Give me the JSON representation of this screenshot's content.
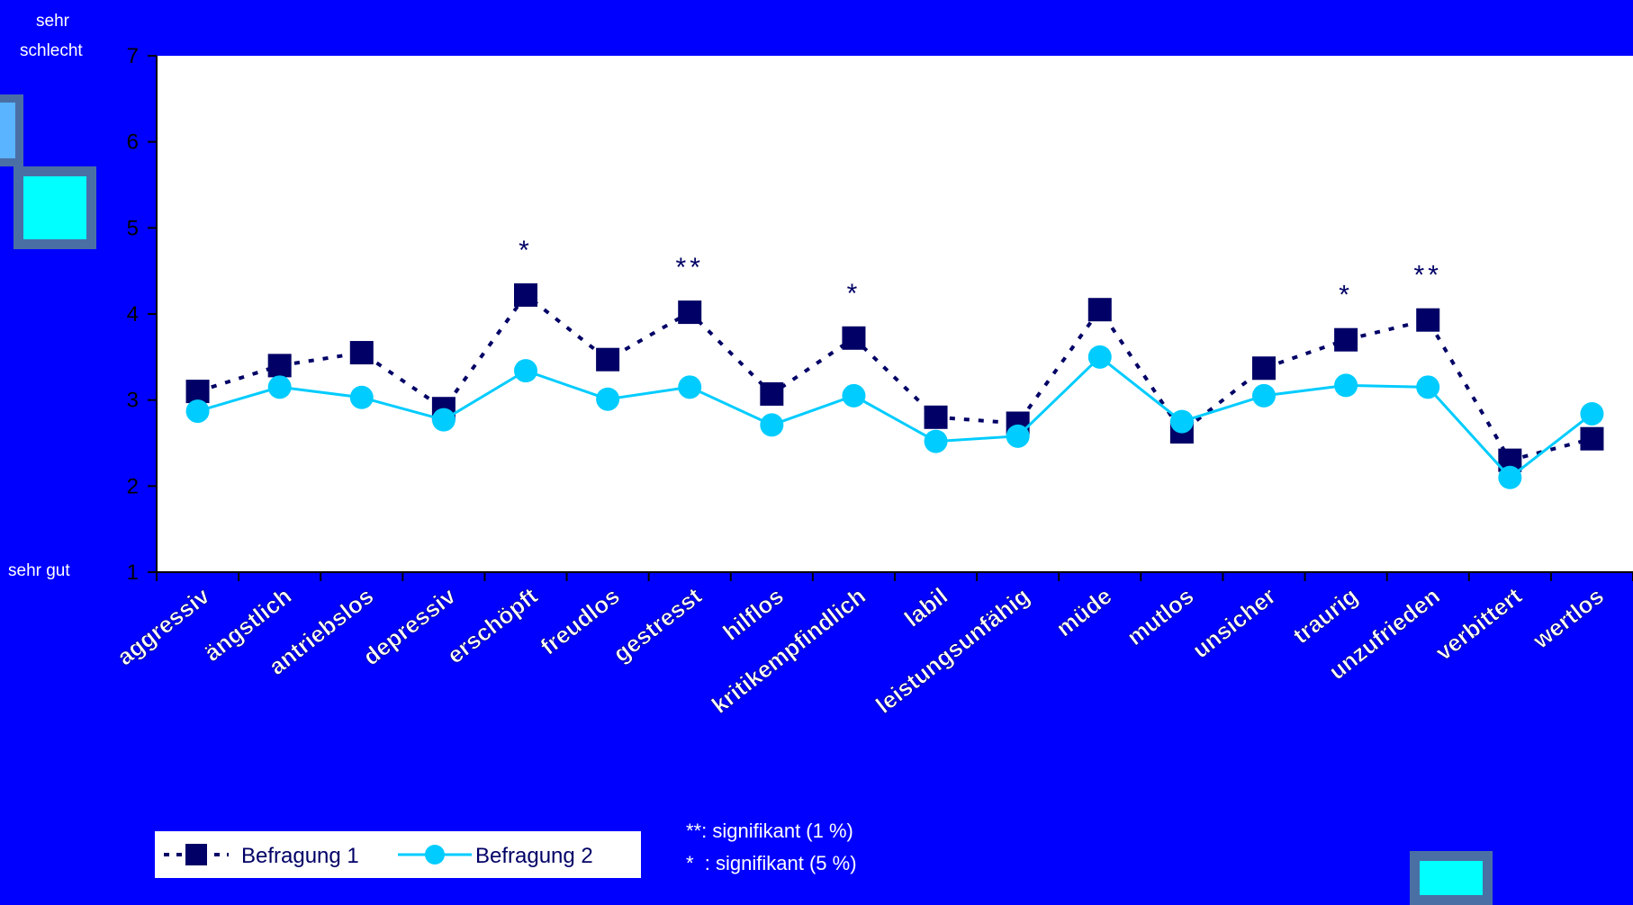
{
  "chart_data": {
    "type": "line",
    "title": "",
    "xlabel": "",
    "ylabel": "",
    "ylim": [
      1,
      7
    ],
    "yticks": [
      1,
      2,
      3,
      4,
      5,
      6,
      7
    ],
    "y_top_label": [
      "sehr",
      "schlecht"
    ],
    "y_bottom_label": "sehr  gut",
    "grid": false,
    "legend_position": "bottom-left",
    "categories": [
      "aggressiv",
      "ängstlich",
      "antriebslos",
      "depressiv",
      "erschöpft",
      "freudlos",
      "gestresst",
      "hilflos",
      "kritikempfindlich",
      "labil",
      "leistungsunfähig",
      "müde",
      "mutlos",
      "unsicher",
      "traurig",
      "unzufrieden",
      "verbittert",
      "wertlos"
    ],
    "series": [
      {
        "name": "Befragung 1",
        "color": "#000066",
        "line": "dotted",
        "marker": "square",
        "values": [
          3.1,
          3.4,
          3.55,
          2.9,
          4.22,
          3.47,
          4.02,
          3.07,
          3.72,
          2.8,
          2.73,
          4.05,
          2.63,
          3.37,
          3.7,
          3.93,
          2.3,
          2.55
        ]
      },
      {
        "name": "Befragung 2",
        "color": "#00ccff",
        "line": "solid",
        "marker": "circle",
        "values": [
          2.87,
          3.15,
          3.03,
          2.77,
          3.34,
          3.01,
          3.15,
          2.71,
          3.05,
          2.52,
          2.58,
          3.5,
          2.75,
          3.05,
          3.17,
          3.15,
          2.1,
          2.84
        ]
      }
    ],
    "significance_marks": [
      {
        "category": "erschöpft",
        "mark": "*"
      },
      {
        "category": "gestresst",
        "mark": "**"
      },
      {
        "category": "kritikempfindlich",
        "mark": "*"
      },
      {
        "category": "traurig",
        "mark": "*"
      },
      {
        "category": "unzufrieden",
        "mark": "**"
      }
    ],
    "footnotes": [
      "**: signifikant (1 %)",
      "*  : signifikant (5 %)"
    ]
  },
  "colors": {
    "background": "#0000ff",
    "plot_area": "#ffffff",
    "deco_light": "#5ab4ff",
    "deco_cyan": "#00ffff",
    "deco_frame": "#4a6fa5"
  }
}
